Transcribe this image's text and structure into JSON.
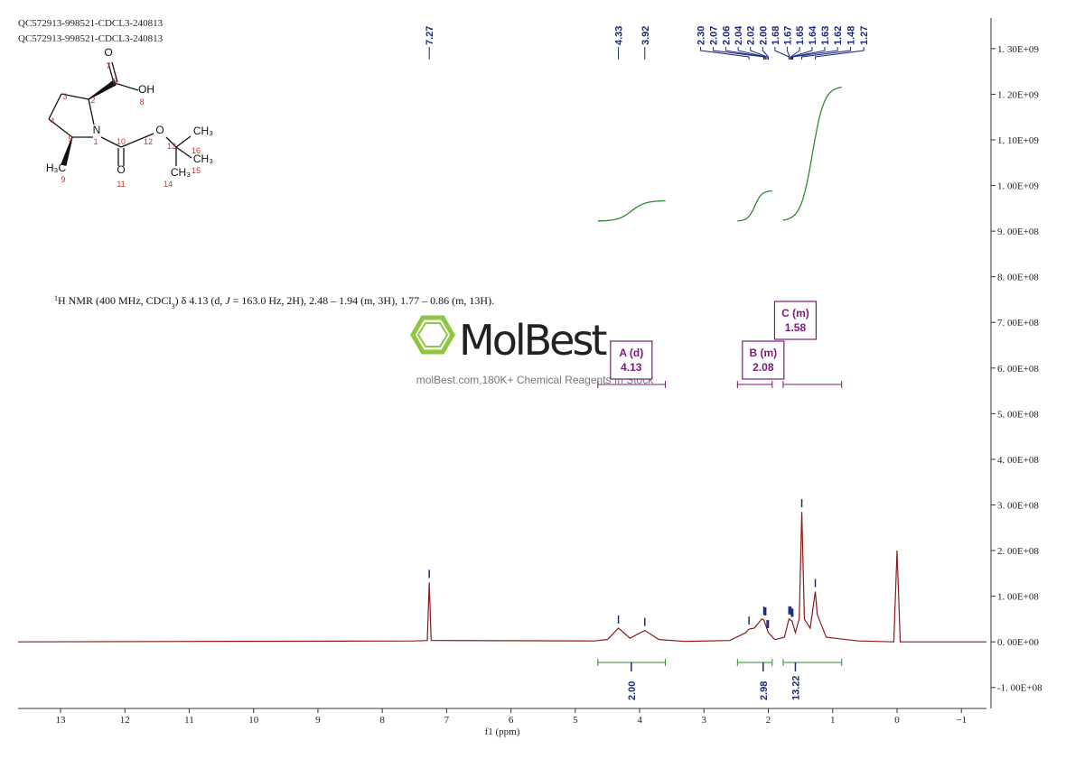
{
  "header": {
    "lines": [
      "QC572913-998521-CDCL3-240813",
      "QC572913-998521-CDCL3-240813"
    ]
  },
  "molecule": {
    "atom_labels": [
      "O",
      "OH",
      "N",
      "O",
      "O",
      "CH₃",
      "CH₃",
      "CH₃",
      "H₃C"
    ],
    "atom_numbers": [
      "1",
      "2",
      "3",
      "4",
      "5",
      "6",
      "7",
      "8",
      "9",
      "10",
      "11",
      "12",
      "13",
      "14",
      "15",
      "16"
    ]
  },
  "description": [
    "1",
    "H NMR (400 MHz, CDCl",
    "3",
    ") δ 4.13 (d, ",
    "J",
    " = 163.0 Hz, 2H), 2.48 – 1.94 (m, 3H), 1.77 – 0.86 (m, 13H)."
  ],
  "watermark": {
    "logo": "MolBest",
    "tagline": "molBest.com,180K+ Chemical Reagents In Stock"
  },
  "chart_data": {
    "type": "line",
    "xlabel": "f1 (ppm)",
    "xlim": [
      13.66,
      -1.39
    ],
    "ylim": [
      -146000000.0,
      1367000000.0
    ],
    "xticks": [
      13,
      12,
      11,
      10,
      9,
      8,
      7,
      6,
      5,
      4,
      3,
      2,
      1,
      0,
      {
        "value": -1,
        "label": "−1"
      }
    ],
    "yticks": [
      {
        "value": -100000000.0,
        "label": "-1. 00E+08"
      },
      {
        "value": 0,
        "label": "0. 00E+00"
      },
      {
        "value": 100000000.0,
        "label": "1. 00E+08"
      },
      {
        "value": 200000000.0,
        "label": "2. 00E+08"
      },
      {
        "value": 300000000.0,
        "label": "3. 00E+08"
      },
      {
        "value": 400000000.0,
        "label": "4. 00E+08"
      },
      {
        "value": 500000000.0,
        "label": "5. 00E+08"
      },
      {
        "value": 600000000.0,
        "label": "6. 00E+08"
      },
      {
        "value": 700000000.0,
        "label": "7. 00E+08"
      },
      {
        "value": 800000000.0,
        "label": "8. 00E+08"
      },
      {
        "value": 900000000.0,
        "label": "9. 00E+08"
      },
      {
        "value": 1000000000.0,
        "label": "1. 00E+09"
      },
      {
        "value": 1100000000.0,
        "label": "1. 10E+09"
      },
      {
        "value": 1200000000.0,
        "label": "1. 20E+09"
      },
      {
        "value": 1300000000.0,
        "label": "1. 30E+09"
      }
    ],
    "x": [
      13.66,
      7.5,
      7.3,
      7.27,
      7.24,
      4.7,
      4.5,
      4.33,
      4.15,
      3.92,
      3.7,
      3.3,
      2.6,
      2.35,
      2.3,
      2.22,
      2.1,
      2.07,
      2.0,
      1.9,
      1.75,
      1.68,
      1.63,
      1.58,
      1.52,
      1.48,
      1.44,
      1.35,
      1.3,
      1.27,
      1.24,
      1.1,
      0.6,
      0.05,
      0,
      -0.05,
      -1.39
    ],
    "series": [
      {
        "name": "1H",
        "color": "#8b1a1a",
        "values": [
          0,
          2000000.0,
          3000000.0,
          130000000.0,
          3000000.0,
          2000000.0,
          5000000.0,
          30000000.0,
          8000000.0,
          25000000.0,
          5000000.0,
          1000000.0,
          3000000.0,
          20000000.0,
          28000000.0,
          30000000.0,
          50000000.0,
          48000000.0,
          20000000.0,
          5000000.0,
          10000000.0,
          50000000.0,
          45000000.0,
          20000000.0,
          50000000.0,
          285000000.0,
          50000000.0,
          30000000.0,
          80000000.0,
          110000000.0,
          60000000.0,
          10000000.0,
          2000000.0,
          0,
          200000000.0,
          0,
          0
        ]
      }
    ],
    "peaks": [
      7.27,
      4.33,
      3.92,
      {
        "value": 2.3,
        "label": "2.30"
      },
      2.07,
      2.06,
      2.04,
      2.02,
      {
        "value": 2,
        "label": "2.00"
      },
      1.68,
      1.67,
      1.65,
      1.64,
      1.63,
      1.62,
      1.48,
      1.27
    ],
    "multiplets": [
      {
        "name": "A (d)",
        "shift": 4.13,
        "range": [
          4.65,
          3.6
        ]
      },
      {
        "name": "B (m)",
        "shift": 2.08,
        "range": [
          2.48,
          1.94
        ]
      },
      {
        "name": "C (m)",
        "shift": 1.58,
        "range": [
          1.77,
          0.86
        ]
      }
    ],
    "integrals": [
      {
        "value": 2,
        "label": "2.00"
      },
      2.98,
      13.22
    ]
  }
}
